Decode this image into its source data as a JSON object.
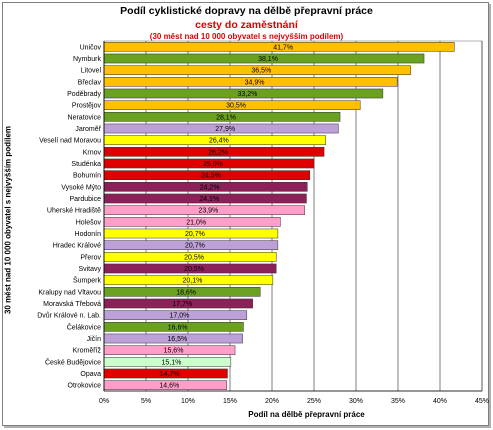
{
  "chart_data": {
    "type": "bar",
    "orientation": "horizontal",
    "title": "Podíl cyklistické dopravy na dělbě přepravní práce",
    "subtitle": "cesty do zaměstnání",
    "note": "(30 měst nad 10 000 obyvatel s nejvyšším podílem)",
    "xlabel": "Podíl na dělbě přepravní práce",
    "ylabel": "30 měst nad 10 000 obyvatel s nejvyšším podílem",
    "xlim": [
      0,
      45
    ],
    "x_ticks": [
      "0%",
      "5%",
      "10%",
      "15%",
      "20%",
      "25%",
      "30%",
      "35%",
      "40%",
      "45%"
    ],
    "grid": "vertical",
    "categories": [
      "Uničov",
      "Nymburk",
      "Litovel",
      "Břeclav",
      "Poděbrady",
      "Prostějov",
      "Neratovice",
      "Jaroměř",
      "Veselí nad Moravou",
      "Krnov",
      "Studénka",
      "Bohumín",
      "Vysoké Mýto",
      "Pardubice",
      "Uherské Hradiště",
      "Holešov",
      "Hodonín",
      "Hradec Králové",
      "Přerov",
      "Svitavy",
      "Šumperk",
      "Kralupy nad Vltavou",
      "Moravská Třebová",
      "Dvůr Králové n. Lab.",
      "Čelákovice",
      "Jičín",
      "Kroměříž",
      "České Budějovice",
      "Opava",
      "Otrokovice"
    ],
    "values": [
      41.7,
      38.1,
      36.5,
      34.9,
      33.2,
      30.5,
      28.1,
      27.9,
      26.4,
      26.2,
      25.0,
      24.5,
      24.2,
      24.1,
      23.9,
      21.0,
      20.7,
      20.7,
      20.5,
      20.5,
      20.1,
      18.6,
      17.7,
      17.0,
      16.6,
      16.5,
      15.6,
      15.1,
      14.7,
      14.6
    ],
    "data_labels": [
      "41,7%",
      "38,1%",
      "36,5%",
      "34,9%",
      "33,2%",
      "30,5%",
      "28,1%",
      "27,9%",
      "26,4%",
      "26,2%",
      "25,0%",
      "24,5%",
      "24,2%",
      "24,1%",
      "23,9%",
      "21,0%",
      "20,7%",
      "20,7%",
      "20,5%",
      "20,5%",
      "20,1%",
      "18,6%",
      "17,7%",
      "17,0%",
      "16,6%",
      "16,5%",
      "15,6%",
      "15,1%",
      "14,7%",
      "14,6%"
    ],
    "colors": [
      "#ffc000",
      "#6aa121",
      "#ffc000",
      "#ffc000",
      "#6aa121",
      "#ffc000",
      "#6aa121",
      "#bda0d8",
      "#ffff00",
      "#e00000",
      "#e00000",
      "#e00000",
      "#8b2158",
      "#8b2158",
      "#ff9ec8",
      "#ff9ec8",
      "#ffff00",
      "#bda0d8",
      "#ffff00",
      "#8b2158",
      "#ffff00",
      "#6aa121",
      "#8b2158",
      "#bda0d8",
      "#6aa121",
      "#bda0d8",
      "#ff9ec8",
      "#ccffcc",
      "#e00000",
      "#ff9ec8"
    ]
  }
}
